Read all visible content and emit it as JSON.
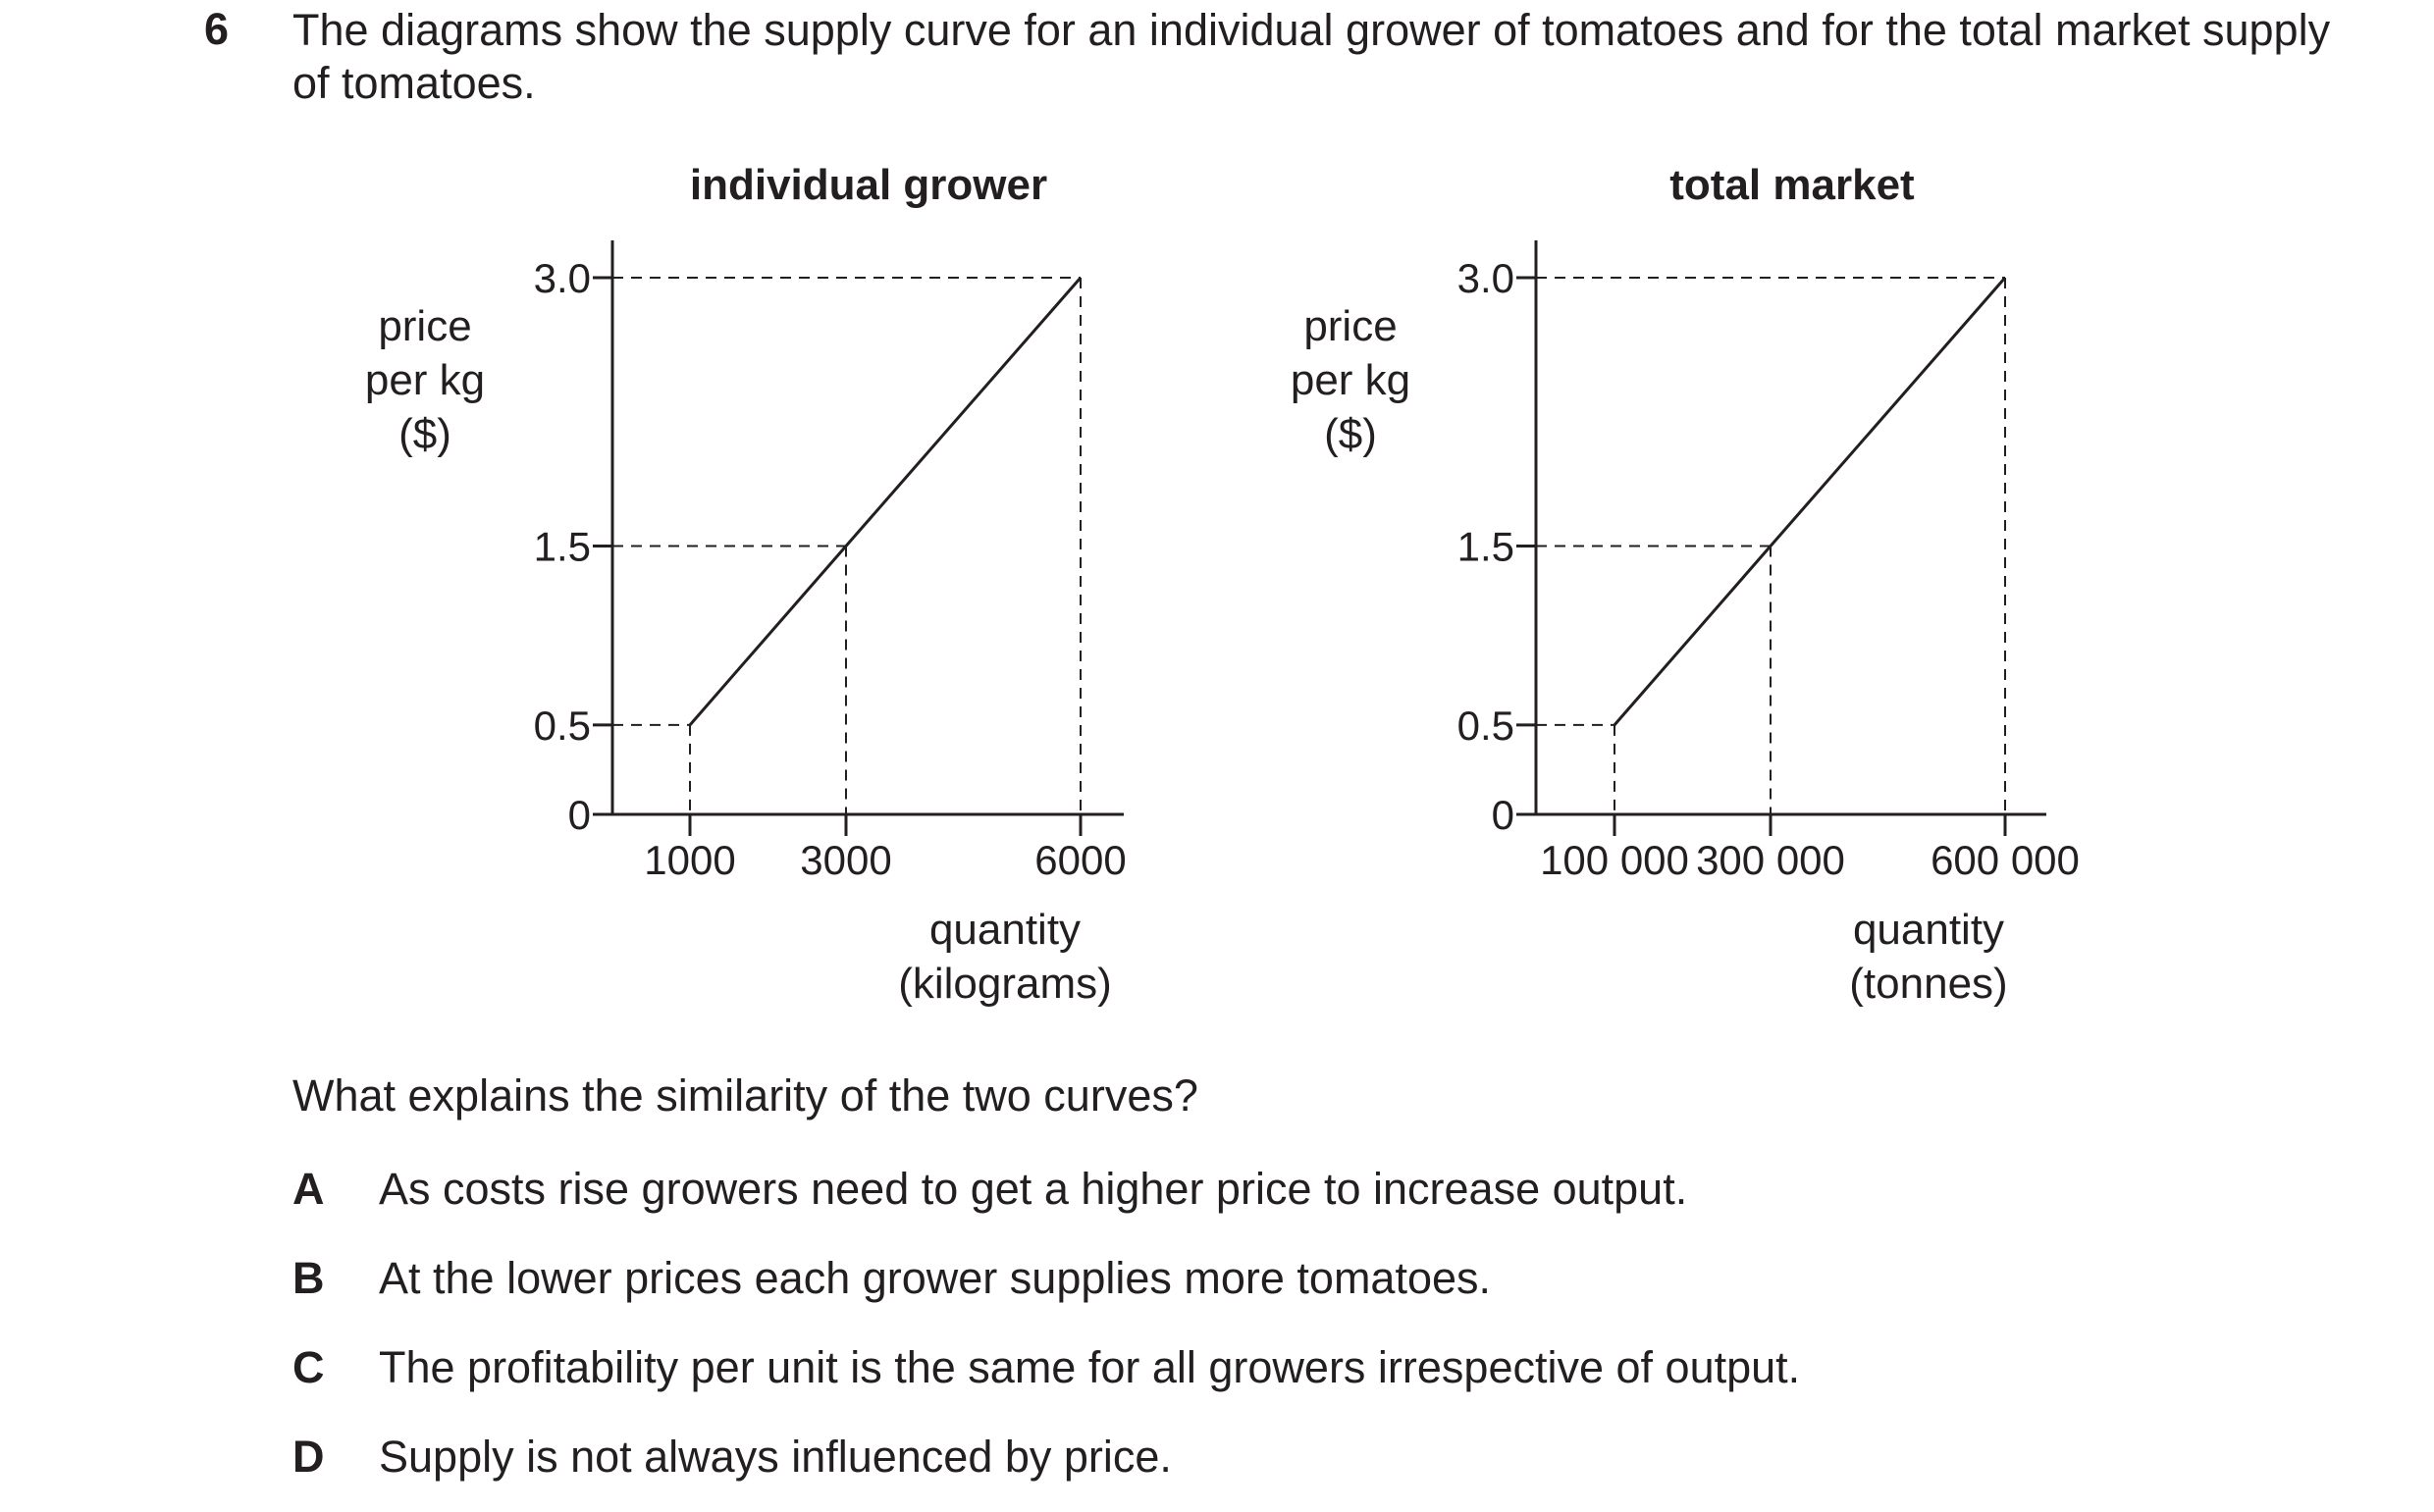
{
  "question": {
    "number": "6",
    "stem": "The diagrams show the supply curve for an individual grower of tomatoes and for the total market supply of tomatoes.",
    "ask": "What explains the similarity of the two curves?",
    "options": [
      {
        "letter": "A",
        "text": "As costs rise growers need to get a higher price to increase output."
      },
      {
        "letter": "B",
        "text": "At the lower prices each grower supplies more tomatoes."
      },
      {
        "letter": "C",
        "text": "The profitability per unit is the same for all growers irrespective of output."
      },
      {
        "letter": "D",
        "text": "Supply is not always influenced by price."
      }
    ]
  },
  "chart_data": [
    {
      "type": "line",
      "title": "individual grower",
      "ylabel": [
        "price",
        "per kg",
        "($)"
      ],
      "xlabel": [
        "quantity",
        "(kilograms)"
      ],
      "y_ticks": [
        "3.0",
        "1.5",
        "0.5",
        "0"
      ],
      "x_ticks": [
        "1000",
        "3000",
        "6000"
      ],
      "ylim": [
        0,
        3.0
      ],
      "grid": false,
      "series": [
        {
          "x": [
            1000,
            3000,
            6000
          ],
          "y": [
            0.5,
            1.5,
            3.0
          ]
        }
      ],
      "guides": "dashed lines to axes at each point"
    },
    {
      "type": "line",
      "title": "total market",
      "ylabel": [
        "price",
        "per kg",
        "($)"
      ],
      "xlabel": [
        "quantity",
        "(tonnes)"
      ],
      "y_ticks": [
        "3.0",
        "1.5",
        "0.5",
        "0"
      ],
      "x_ticks": [
        "100 000",
        "300 000",
        "600 000"
      ],
      "ylim": [
        0,
        3.0
      ],
      "grid": false,
      "series": [
        {
          "x": [
            100000,
            300000,
            600000
          ],
          "y": [
            0.5,
            1.5,
            3.0
          ]
        }
      ],
      "guides": "dashed lines to axes at each point"
    }
  ]
}
